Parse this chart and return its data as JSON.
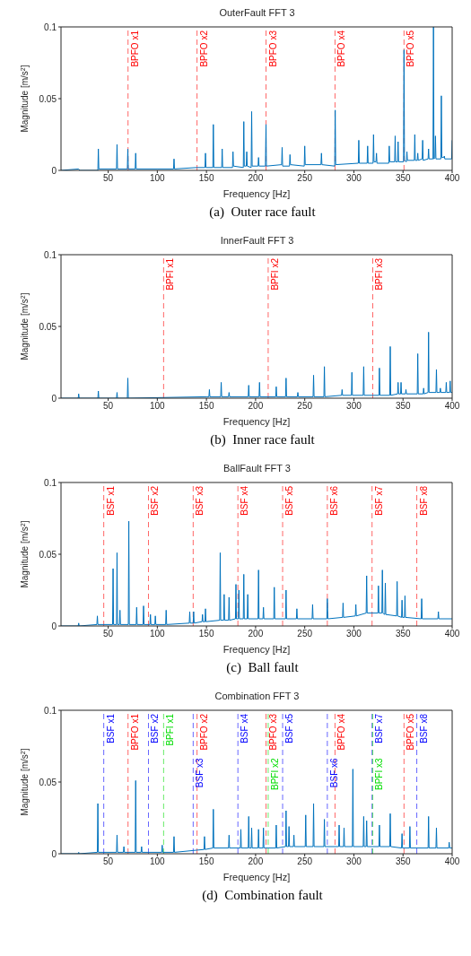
{
  "chart_data": [
    {
      "type": "line",
      "title": "OuterFault FFT 3",
      "xlabel": "Frequency [Hz]",
      "ylabel": "Magnitude [m/s$^{2}$]",
      "xlim": [
        2,
        400
      ],
      "xticks": [
        50,
        100,
        150,
        200,
        250,
        300,
        350,
        400
      ],
      "ylim": [
        0,
        0.1
      ],
      "yticks": [
        0,
        0.05,
        0.1
      ],
      "annotations": [
        "(a)  Outer race fault"
      ],
      "series": [
        {
          "color": "#0072bd",
          "x": [
            2,
            20,
            21,
            39.5,
            40,
            40.5,
            58.5,
            59,
            59.5,
            69.5,
            70,
            70.5,
            77.5,
            78,
            78.5,
            116.5,
            117,
            117.5,
            140,
            148.5,
            149,
            149.5,
            156.5,
            157,
            157.5,
            165.5,
            166,
            166.5,
            176.5,
            177,
            177.5,
            187.5,
            188,
            188.5,
            190.5,
            191,
            191.5,
            195.5,
            196,
            196.5,
            202.5,
            203,
            203.5,
            210,
            210.6,
            211,
            226.5,
            227,
            227.5,
            234.5,
            235,
            235.5,
            249.5,
            250,
            250.5,
            266.5,
            267,
            267.5,
            280.5,
            281,
            281.5,
            304.5,
            305,
            305.5,
            313.5,
            314,
            314.5,
            319.5,
            320,
            320.5,
            322.5,
            323,
            323.5,
            335.5,
            336,
            336.5,
            341.5,
            342,
            342.5,
            344.5,
            345,
            345.5,
            350.5,
            351,
            351.5,
            353.5,
            354,
            354.5,
            361.5,
            362,
            362.5,
            364.5,
            365,
            365.5,
            369.5,
            370,
            370.5,
            375.5,
            376,
            376.5,
            380.5,
            381,
            381.5,
            382.5,
            383,
            383.5,
            388.5,
            389,
            389.5,
            391.5,
            392,
            392.5,
            399.5,
            400
          ],
          "values": [
            0,
            0.001,
            0,
            0,
            0.015,
            0.001,
            0.001,
            0.018,
            0.001,
            0.001,
            0.015,
            0.001,
            0.001,
            0.012,
            0.001,
            0.001,
            0.008,
            0.001,
            0.002,
            0.002,
            0.012,
            0.002,
            0.002,
            0.032,
            0.002,
            0.002,
            0.015,
            0.002,
            0.002,
            0.013,
            0.003,
            0.002,
            0.034,
            0.003,
            0.003,
            0.013,
            0.003,
            0.002,
            0.041,
            0.003,
            0.003,
            0.009,
            0.003,
            0.003,
            0.032,
            0.003,
            0.004,
            0.016,
            0.003,
            0.003,
            0.011,
            0.004,
            0.003,
            0.017,
            0.004,
            0.004,
            0.012,
            0.004,
            0.003,
            0.042,
            0.004,
            0.005,
            0.021,
            0.005,
            0.005,
            0.017,
            0.005,
            0.005,
            0.025,
            0.006,
            0.006,
            0.012,
            0.005,
            0.005,
            0.017,
            0.006,
            0.006,
            0.024,
            0.006,
            0.006,
            0.02,
            0.006,
            0.006,
            0.084,
            0.007,
            0.006,
            0.013,
            0.007,
            0.007,
            0.025,
            0.007,
            0.007,
            0.012,
            0.007,
            0.008,
            0.021,
            0.007,
            0.008,
            0.015,
            0.008,
            0.008,
            0.1,
            0.008,
            0.009,
            0.024,
            0.008,
            0.008,
            0.052,
            0.009,
            0.009,
            0.01,
            0.008,
            0.008,
            0.021
          ]
        }
      ],
      "ref_lines": [
        {
          "axis": "x",
          "value": 70.2,
          "label": "BPFO x1",
          "color": "#ff0000",
          "line_style": "dashed"
        },
        {
          "axis": "x",
          "value": 140.4,
          "label": "BPFO x2",
          "color": "#ff0000",
          "line_style": "dashed"
        },
        {
          "axis": "x",
          "value": 210.6,
          "label": "BPFO x3",
          "color": "#ff0000",
          "line_style": "dashed"
        },
        {
          "axis": "x",
          "value": 280.8,
          "label": "BPFO x4",
          "color": "#ff0000",
          "line_style": "dashed"
        },
        {
          "axis": "x",
          "value": 351,
          "label": "BPFO x5",
          "color": "#ff0000",
          "line_style": "dashed"
        }
      ]
    },
    {
      "type": "line",
      "title": "InnerFault FFT 3",
      "xlabel": "Frequency [Hz]",
      "ylabel": "Magnitude [m/s$^{2}$]",
      "xlim": [
        2,
        400
      ],
      "xticks": [
        50,
        100,
        150,
        200,
        250,
        300,
        350,
        400
      ],
      "ylim": [
        0,
        0.1
      ],
      "yticks": [
        0,
        0.05,
        0.1
      ],
      "annotations": [
        "(b)  Inner race fault"
      ],
      "series": [
        {
          "color": "#0072bd",
          "x": [
            2,
            19.5,
            20,
            20.5,
            39.5,
            40,
            40.5,
            58.5,
            59,
            59.5,
            69.5,
            70,
            70.5,
            150,
            152.5,
            153,
            153.5,
            164.5,
            165,
            165.5,
            172.5,
            173,
            173.5,
            192.5,
            193,
            193.5,
            203.5,
            204,
            204.5,
            220.5,
            221,
            221.5,
            230.5,
            231,
            231.5,
            242.5,
            243,
            243.5,
            258.5,
            259,
            259.5,
            269.5,
            270,
            270.5,
            287.5,
            288,
            288.5,
            297.5,
            298,
            298.5,
            309.5,
            310,
            310.5,
            325.5,
            326,
            326.5,
            336.5,
            337,
            337.5,
            344.5,
            345,
            345.5,
            347.5,
            348,
            348.5,
            352.5,
            353,
            353.5,
            364.5,
            365,
            365.5,
            370.5,
            371,
            371.5,
            375.5,
            376,
            376.5,
            383.5,
            384,
            384.5,
            387.5,
            388,
            388.5,
            393.5,
            394,
            394.5,
            397.5,
            398,
            398.5,
            400
          ],
          "values": [
            0,
            0,
            0.003,
            0,
            0,
            0.005,
            0,
            0,
            0.004,
            0,
            0,
            0.014,
            0,
            0.001,
            0.001,
            0.006,
            0.001,
            0.001,
            0.011,
            0.001,
            0.001,
            0.004,
            0.001,
            0.001,
            0.009,
            0.001,
            0.001,
            0.011,
            0.001,
            0.001,
            0.008,
            0.001,
            0.001,
            0.014,
            0.001,
            0.001,
            0.004,
            0.001,
            0.001,
            0.016,
            0.001,
            0.001,
            0.022,
            0.001,
            0.002,
            0.006,
            0.002,
            0.002,
            0.018,
            0.002,
            0.002,
            0.022,
            0.002,
            0.002,
            0.021,
            0.002,
            0.002,
            0.036,
            0.002,
            0.003,
            0.011,
            0.003,
            0.003,
            0.011,
            0.003,
            0.003,
            0.006,
            0.003,
            0.003,
            0.031,
            0.003,
            0.003,
            0.007,
            0.003,
            0.004,
            0.046,
            0.004,
            0.004,
            0.02,
            0.004,
            0.004,
            0.007,
            0.004,
            0.004,
            0.011,
            0.004,
            0.004,
            0.012,
            0.004,
            0.004
          ]
        }
      ],
      "ref_lines": [
        {
          "axis": "x",
          "value": 106.4,
          "label": "BPFI x1",
          "color": "#ff0000",
          "line_style": "dashed"
        },
        {
          "axis": "x",
          "value": 212.8,
          "label": "BPFI x2",
          "color": "#ff0000",
          "line_style": "dashed"
        },
        {
          "axis": "x",
          "value": 319.2,
          "label": "BPFI x3",
          "color": "#ff0000",
          "line_style": "dashed"
        }
      ]
    },
    {
      "type": "line",
      "title": "BallFault FFT 3",
      "xlabel": "Frequency [Hz]",
      "ylabel": "Magnitude [m/s$^{2}$]",
      "xlim": [
        2,
        400
      ],
      "xticks": [
        50,
        100,
        150,
        200,
        250,
        300,
        350,
        400
      ],
      "ylim": [
        0,
        0.1
      ],
      "yticks": [
        0,
        0.05,
        0.1
      ],
      "annotations": [
        "(c)  Ball fault"
      ],
      "series": [
        {
          "color": "#0072bd",
          "x": [
            2,
            19.5,
            20,
            20.5,
            38.5,
            39,
            39.5,
            54.5,
            55,
            55.5,
            58.5,
            59,
            59.5,
            61.5,
            62,
            62.5,
            70.5,
            71,
            71.5,
            78.5,
            79,
            79.5,
            85.5,
            86,
            86.5,
            92.5,
            93,
            93.5,
            97.5,
            98,
            98.5,
            108.5,
            109,
            109.5,
            132.5,
            133,
            133.5,
            136.5,
            137,
            137.5,
            145.5,
            146,
            146.5,
            148.5,
            149,
            149.5,
            163.5,
            164,
            164.5,
            167.5,
            168,
            168.5,
            172.5,
            173,
            173.5,
            179.5,
            180,
            180.5,
            182.5,
            183,
            183.5,
            187.5,
            188,
            188.5,
            191.5,
            192,
            192.5,
            202.5,
            203,
            203.5,
            207.5,
            208,
            208.5,
            218.5,
            219,
            219.5,
            230.5,
            231,
            231.5,
            241.5,
            242,
            242.5,
            257.5,
            258,
            258.5,
            272.5,
            273,
            273.5,
            288.5,
            289,
            289.5,
            301.5,
            302,
            302.5,
            312.5,
            313,
            313.5,
            324.5,
            325,
            325.5,
            328.5,
            329,
            329.5,
            331.5,
            332,
            332.5,
            343.5,
            344,
            344.5,
            348.5,
            349,
            349.5,
            351.5,
            352,
            352.5,
            368.5,
            369,
            369.5,
            385.5,
            386,
            386.5,
            400
          ],
          "values": [
            0,
            0,
            0.002,
            0,
            0.001,
            0.007,
            0.001,
            0.001,
            0.04,
            0.001,
            0.001,
            0.051,
            0.001,
            0.001,
            0.011,
            0.001,
            0.001,
            0.073,
            0.001,
            0.001,
            0.013,
            0.001,
            0.001,
            0.014,
            0.001,
            0.001,
            0.008,
            0.001,
            0.001,
            0.007,
            0.001,
            0.001,
            0.011,
            0.001,
            0.002,
            0.01,
            0.002,
            0.002,
            0.01,
            0.002,
            0.003,
            0.008,
            0.003,
            0.003,
            0.012,
            0.003,
            0.004,
            0.051,
            0.004,
            0.004,
            0.022,
            0.004,
            0.004,
            0.02,
            0.004,
            0.005,
            0.029,
            0.005,
            0.005,
            0.025,
            0.005,
            0.005,
            0.036,
            0.005,
            0.005,
            0.022,
            0.005,
            0.005,
            0.039,
            0.005,
            0.005,
            0.013,
            0.005,
            0.005,
            0.027,
            0.005,
            0.005,
            0.025,
            0.005,
            0.005,
            0.012,
            0.005,
            0.005,
            0.015,
            0.005,
            0.005,
            0.019,
            0.005,
            0.006,
            0.016,
            0.006,
            0.007,
            0.015,
            0.007,
            0.009,
            0.035,
            0.009,
            0.009,
            0.028,
            0.009,
            0.009,
            0.039,
            0.009,
            0.008,
            0.03,
            0.008,
            0.007,
            0.031,
            0.007,
            0.006,
            0.018,
            0.006,
            0.006,
            0.021,
            0.006,
            0.005,
            0.019,
            0.005,
            0.005,
            0.01,
            0.005,
            0.005
          ]
        }
      ],
      "ref_lines": [
        {
          "axis": "x",
          "value": 45.5,
          "label": "BSF x1",
          "color": "#ff0000",
          "line_style": "dashed"
        },
        {
          "axis": "x",
          "value": 91,
          "label": "BSF x2",
          "color": "#ff0000",
          "line_style": "dashed"
        },
        {
          "axis": "x",
          "value": 136.5,
          "label": "BSF x3",
          "color": "#ff0000",
          "line_style": "dashed"
        },
        {
          "axis": "x",
          "value": 182,
          "label": "BSF x4",
          "color": "#ff0000",
          "line_style": "dashed"
        },
        {
          "axis": "x",
          "value": 227.5,
          "label": "BSF x5",
          "color": "#ff0000",
          "line_style": "dashed"
        },
        {
          "axis": "x",
          "value": 273,
          "label": "BSF x6",
          "color": "#ff0000",
          "line_style": "dashed"
        },
        {
          "axis": "x",
          "value": 318.5,
          "label": "BSF x7",
          "color": "#ff0000",
          "line_style": "dashed"
        },
        {
          "axis": "x",
          "value": 364,
          "label": "BSF x8",
          "color": "#ff0000",
          "line_style": "dashed"
        }
      ]
    },
    {
      "type": "line",
      "title": "Combination FFT 3",
      "xlabel": "Frequency [Hz]",
      "ylabel": "Magnitude [m/s$^{2}$]",
      "xlim": [
        2,
        400
      ],
      "xticks": [
        50,
        100,
        150,
        200,
        250,
        300,
        350,
        400
      ],
      "ylim": [
        0,
        0.1
      ],
      "yticks": [
        0,
        0.05,
        0.1
      ],
      "annotations": [
        "(d)  Combination fault"
      ],
      "series": [
        {
          "color": "#0072bd",
          "x": [
            2,
            19.5,
            20,
            20.5,
            39,
            39.5,
            40,
            58.5,
            59,
            59.5,
            65.5,
            66,
            66.5,
            77.5,
            78,
            78.5,
            83.5,
            84,
            84.5,
            104.5,
            105,
            105.5,
            116.5,
            117,
            117.5,
            147.5,
            148,
            148.5,
            156.5,
            157,
            157.5,
            172.5,
            173,
            173.5,
            184.5,
            185,
            185.5,
            192.5,
            193,
            193.5,
            195.5,
            196,
            196.5,
            202.5,
            203,
            203.5,
            207.5,
            208,
            208.5,
            220.5,
            221,
            221.5,
            230.5,
            231,
            231.5,
            233.5,
            234,
            234.5,
            238.5,
            239,
            239.5,
            250.5,
            251,
            251.5,
            258.5,
            259,
            259.5,
            269.5,
            270,
            270.5,
            284.5,
            285,
            285.5,
            289.5,
            290,
            290.5,
            298.5,
            299,
            299.5,
            309.5,
            310,
            310.5,
            312.5,
            313,
            313.5,
            325.5,
            326,
            326.5,
            336.5,
            337,
            337.5,
            348.5,
            349,
            349.5,
            356.5,
            357,
            357.5,
            375.5,
            376,
            376.5,
            383.5,
            384,
            384.5,
            396.5,
            397,
            397.5,
            400
          ],
          "values": [
            0,
            0,
            0.001,
            0,
            0.001,
            0.035,
            0.001,
            0.001,
            0.013,
            0.001,
            0.001,
            0.005,
            0.001,
            0.001,
            0.051,
            0.001,
            0.001,
            0.005,
            0.001,
            0.001,
            0.006,
            0.001,
            0.001,
            0.012,
            0.001,
            0.003,
            0.012,
            0.003,
            0.004,
            0.031,
            0.004,
            0.004,
            0.013,
            0.004,
            0.004,
            0.017,
            0.004,
            0.004,
            0.026,
            0.004,
            0.004,
            0.018,
            0.004,
            0.004,
            0.017,
            0.004,
            0.004,
            0.018,
            0.004,
            0.004,
            0.02,
            0.004,
            0.005,
            0.03,
            0.005,
            0.005,
            0.019,
            0.005,
            0.005,
            0.013,
            0.005,
            0.005,
            0.027,
            0.005,
            0.005,
            0.035,
            0.005,
            0.005,
            0.024,
            0.005,
            0.005,
            0.02,
            0.005,
            0.005,
            0.018,
            0.005,
            0.005,
            0.059,
            0.005,
            0.005,
            0.026,
            0.005,
            0.005,
            0.023,
            0.005,
            0.005,
            0.02,
            0.005,
            0.005,
            0.028,
            0.005,
            0.004,
            0.014,
            0.004,
            0.004,
            0.019,
            0.004,
            0.004,
            0.026,
            0.004,
            0.004,
            0.018,
            0.004,
            0.004,
            0.008,
            0.004,
            0.004
          ]
        }
      ],
      "ref_lines": [
        {
          "axis": "x",
          "value": 70.2,
          "label": "BPFO x1",
          "color": "#ff0000",
          "line_style": "dashed"
        },
        {
          "axis": "x",
          "value": 140.4,
          "label": "BPFO x2",
          "color": "#ff0000",
          "line_style": "dashed"
        },
        {
          "axis": "x",
          "value": 210.6,
          "label": "BPFO x3",
          "color": "#ff0000",
          "line_style": "dashed"
        },
        {
          "axis": "x",
          "value": 280.8,
          "label": "BPFO x4",
          "color": "#ff0000",
          "line_style": "dashed"
        },
        {
          "axis": "x",
          "value": 351,
          "label": "BPFO x5",
          "color": "#ff0000",
          "line_style": "dashed"
        },
        {
          "axis": "x",
          "value": 45.5,
          "label": "BSF x1",
          "color": "#0000ff",
          "line_style": "dashed"
        },
        {
          "axis": "x",
          "value": 91,
          "label": "BSF x2",
          "color": "#0000ff",
          "line_style": "dashed"
        },
        {
          "axis": "x",
          "value": 136.5,
          "label": "BSF x3",
          "color": "#0000ff",
          "line_style": "dashed"
        },
        {
          "axis": "x",
          "value": 182,
          "label": "BSF x4",
          "color": "#0000ff",
          "line_style": "dashed"
        },
        {
          "axis": "x",
          "value": 227.5,
          "label": "BSF x5",
          "color": "#0000ff",
          "line_style": "dashed"
        },
        {
          "axis": "x",
          "value": 273,
          "label": "BSF x6",
          "color": "#0000ff",
          "line_style": "dashed"
        },
        {
          "axis": "x",
          "value": 318.5,
          "label": "BSF x7",
          "color": "#0000ff",
          "line_style": "dashed"
        },
        {
          "axis": "x",
          "value": 364,
          "label": "BSF x8",
          "color": "#0000ff",
          "line_style": "dashed"
        },
        {
          "axis": "x",
          "value": 106.4,
          "label": "BPFI x1",
          "color": "#00dd00",
          "line_style": "dashed"
        },
        {
          "axis": "x",
          "value": 212.8,
          "label": "BPFI x2",
          "color": "#00dd00",
          "line_style": "dashed"
        },
        {
          "axis": "x",
          "value": 319.2,
          "label": "BPFI x3",
          "color": "#00dd00",
          "line_style": "dashed"
        }
      ]
    }
  ]
}
